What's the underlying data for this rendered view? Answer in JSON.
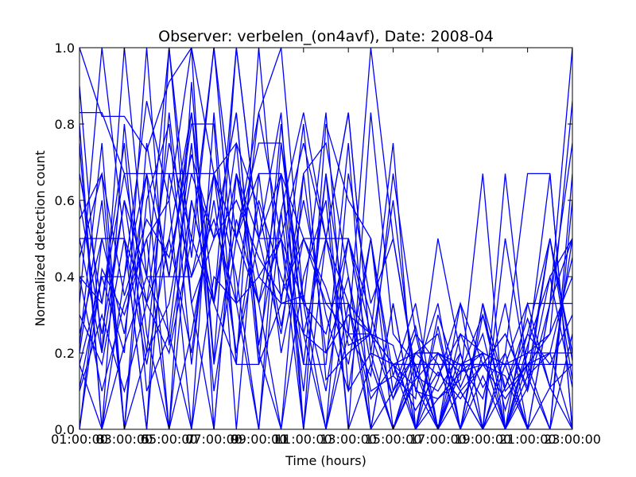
{
  "chart_data": {
    "type": "line",
    "title": "Observer: verbelen_(on4avf), Date: 2008-04",
    "xlabel": "Time (hours)",
    "ylabel": "Normalized detection count",
    "x_tick_labels": [
      "01:00:00",
      "03:00:00",
      "05:00:00",
      "07:00:00",
      "09:00:00",
      "11:00:00",
      "13:00:00",
      "15:00:00",
      "17:00:00",
      "19:00:00",
      "21:00:00",
      "23:00:00"
    ],
    "x_tick_offsets": [
      "3",
      "5",
      "7",
      "9",
      "11"
    ],
    "y_ticks": [
      "0.0",
      "0.2",
      "0.4",
      "0.6",
      "0.8",
      "1.0"
    ],
    "xlim": [
      1,
      23
    ],
    "ylim": [
      0,
      1
    ],
    "line_color": "#0000ff",
    "grid": false,
    "x": [
      1,
      2,
      3,
      4,
      5,
      6,
      7,
      8,
      9,
      10,
      11,
      12,
      13,
      14,
      15,
      16,
      17,
      18,
      19,
      20,
      21,
      22,
      23
    ],
    "series": [
      {
        "values": [
          1.0,
          0.82,
          0.82,
          0.73,
          0.91,
          1.0,
          0.67,
          0.5,
          0.83,
          0.5,
          0.75,
          0.5,
          0.33,
          0.25,
          0.17,
          0.11,
          0.0,
          0.15,
          0.17,
          0.08,
          0.17,
          0.25,
          0.86
        ]
      },
      {
        "values": [
          0.33,
          1.0,
          0.5,
          0.0,
          1.0,
          0.45,
          1.0,
          0.33,
          0.0,
          0.75,
          0.25,
          0.5,
          0.83,
          0.2,
          0.0,
          0.17,
          0.17,
          0.0,
          0.33,
          0.0,
          0.11,
          0.5,
          0.18
        ]
      },
      {
        "values": [
          0.0,
          0.5,
          0.25,
          0.67,
          0.0,
          0.91,
          0.18,
          1.0,
          0.5,
          0.25,
          0.67,
          0.75,
          0.4,
          0.1,
          0.14,
          0.08,
          0.5,
          0.2,
          0.0,
          0.5,
          0.14,
          0.0,
          0.67
        ]
      },
      {
        "values": [
          0.5,
          0.2,
          1.0,
          0.4,
          0.25,
          0.0,
          0.83,
          0.17,
          1.0,
          0.33,
          0.8,
          0.13,
          0.2,
          0.25,
          0.75,
          0.0,
          0.08,
          0.13,
          0.67,
          0.0,
          0.33,
          0.33,
          1.0
        ]
      },
      {
        "values": [
          0.17,
          0.0,
          0.4,
          0.86,
          0.6,
          1.0,
          0.0,
          0.67,
          0.33,
          0.5,
          0.0,
          0.8,
          0.6,
          0.5,
          0.0,
          0.13,
          0.2,
          0.1,
          0.0,
          0.67,
          0.14,
          0.5,
          0.2
        ]
      },
      {
        "values": [
          0.83,
          0.83,
          0.67,
          0.67,
          0.67,
          0.67,
          0.67,
          0.5,
          0.75,
          0.75,
          0.33,
          0.33,
          0.25,
          0.25,
          0.17,
          0.17,
          0.17,
          0.17,
          0.17,
          0.17,
          0.17,
          0.17,
          0.17
        ]
      },
      {
        "values": [
          0.2,
          0.6,
          0.0,
          0.75,
          0.4,
          0.8,
          0.8,
          0.0,
          0.67,
          0.67,
          0.17,
          0.17,
          0.75,
          0.0,
          0.33,
          0.0,
          0.3,
          0.11,
          0.25,
          0.0,
          0.2,
          0.67,
          0.0
        ]
      },
      {
        "values": [
          0.6,
          0.25,
          0.6,
          0.2,
          0.83,
          0.33,
          0.5,
          0.83,
          0.2,
          0.0,
          0.4,
          0.6,
          0.0,
          0.83,
          0.25,
          0.17,
          0.0,
          0.33,
          0.17,
          0.14,
          0.0,
          0.11,
          0.5
        ]
      },
      {
        "values": [
          0.11,
          0.4,
          0.2,
          1.0,
          0.22,
          0.6,
          0.33,
          0.67,
          0.5,
          0.83,
          0.0,
          0.0,
          0.25,
          0.14,
          0.67,
          0.25,
          0.17,
          0.0,
          0.14,
          0.0,
          0.22,
          0.4,
          0.11
        ]
      },
      {
        "values": [
          0.4,
          0.1,
          0.33,
          0.5,
          0.6,
          0.0,
          0.4,
          0.33,
          0.83,
          1.0,
          0.33,
          0.83,
          0.1,
          0.5,
          0.14,
          0.33,
          0.0,
          0.25,
          0.2,
          0.17,
          0.0,
          0.33,
          0.75
        ]
      },
      {
        "values": [
          0.25,
          0.5,
          0.5,
          0.33,
          0.75,
          0.5,
          1.0,
          0.5,
          0.33,
          0.0,
          0.67,
          0.2,
          0.4,
          0.0,
          0.1,
          0.2,
          0.25,
          0.0,
          0.33,
          0.11,
          0.25,
          0.17,
          0.3
        ]
      },
      {
        "values": [
          0.75,
          0.0,
          0.8,
          0.25,
          0.0,
          0.6,
          0.33,
          1.0,
          0.5,
          0.67,
          0.0,
          0.5,
          0.22,
          0.25,
          0.22,
          0.0,
          0.2,
          0.1,
          0.0,
          0.2,
          0.67,
          0.67,
          0.0
        ]
      },
      {
        "values": [
          0.5,
          0.5,
          0.5,
          0.17,
          0.5,
          0.83,
          0.33,
          0.17,
          0.17,
          0.8,
          0.25,
          0.0,
          0.67,
          0.33,
          0.5,
          0.14,
          0.1,
          0.2,
          0.0,
          0.0,
          0.2,
          0.25,
          0.4
        ]
      },
      {
        "values": [
          0.45,
          0.67,
          0.35,
          0.55,
          0.45,
          0.72,
          0.5,
          0.6,
          0.45,
          0.35,
          0.5,
          0.5,
          0.83,
          0.2,
          0.6,
          0.1,
          0.08,
          0.15,
          0.3,
          0.05,
          0.25,
          0.5,
          0.13
        ]
      },
      {
        "values": [
          0.1,
          0.3,
          0.1,
          0.33,
          0.5,
          0.2,
          0.67,
          0.75,
          0.58,
          0.27,
          0.6,
          0.3,
          0.1,
          0.2,
          0.17,
          0.05,
          0.15,
          0.08,
          0.17,
          0.25,
          0.1,
          0.33,
          0.5
        ]
      },
      {
        "values": [
          0.3,
          0.17,
          0.5,
          0.0,
          0.67,
          0.4,
          0.55,
          0.33,
          0.4,
          0.33,
          0.35,
          0.1,
          0.5,
          0.3,
          0.08,
          0.25,
          0.0,
          0.17,
          0.08,
          0.33,
          0.0,
          0.33,
          0.33
        ]
      },
      {
        "values": [
          0.0,
          0.42,
          0.3,
          0.5,
          0.0,
          0.25,
          0.6,
          0.2,
          0.5,
          0.5,
          0.17,
          0.67,
          0.0,
          0.17,
          0.0,
          0.14,
          0.33,
          0.0,
          0.3,
          0.1,
          0.17,
          0.0,
          0.25
        ]
      },
      {
        "values": [
          0.67,
          0.33,
          0.75,
          0.1,
          0.25,
          0.75,
          0.1,
          0.5,
          0.67,
          0.2,
          0.5,
          0.37,
          0.17,
          0.5,
          0.1,
          0.27,
          0.0,
          0.2,
          0.0,
          0.17,
          0.33,
          0.11,
          0.0
        ]
      },
      {
        "values": [
          0.22,
          0.75,
          0.0,
          0.6,
          0.8,
          0.17,
          0.67,
          0.4,
          0.0,
          0.57,
          0.83,
          0.5,
          0.5,
          0.17,
          0.0,
          0.2,
          0.2,
          0.15,
          0.2,
          0.0,
          0.14,
          0.2,
          0.0
        ]
      },
      {
        "values": [
          0.4,
          0.33,
          0.67,
          0.33,
          0.2,
          0.5,
          0.33,
          0.75,
          0.17,
          0.33,
          0.33,
          0.0,
          0.33,
          0.0,
          0.33,
          0.0,
          0.13,
          0.33,
          0.0,
          0.11,
          0.29,
          0.11,
          0.17
        ]
      },
      {
        "values": [
          0.8,
          0.0,
          0.22,
          0.4,
          1.0,
          0.33,
          0.0,
          0.67,
          0.4,
          0.5,
          0.33,
          0.25,
          0.5,
          0.25,
          0.08,
          0.2,
          0.14,
          0.25,
          0.11,
          0.2,
          0.0,
          0.0,
          0.6
        ]
      },
      {
        "values": [
          0.55,
          0.67,
          0.0,
          0.2,
          0.33,
          0.67,
          0.5,
          0.83,
          0.22,
          0.57,
          0.1,
          0.67,
          0.25,
          1.0,
          0.5,
          0.15,
          0.0,
          0.1,
          0.17,
          0.25,
          0.11,
          0.4,
          0.5
        ]
      },
      {
        "values": [
          0.17,
          0.4,
          0.4,
          0.67,
          0.4,
          0.83,
          0.17,
          0.55,
          0.33,
          0.67,
          0.5,
          0.33,
          0.33,
          0.08,
          0.17,
          0.0,
          0.27,
          0.0,
          0.2,
          0.0,
          0.17,
          0.2,
          0.45
        ]
      },
      {
        "values": [
          0.9,
          0.2,
          0.6,
          0.4,
          0.4,
          0.4,
          0.67,
          0.2,
          0.6,
          0.4,
          0.25,
          0.2,
          0.3,
          0.25,
          0.17,
          0.2,
          0.2,
          0.17,
          0.2,
          0.17,
          0.2,
          0.2,
          0.2
        ]
      }
    ]
  }
}
